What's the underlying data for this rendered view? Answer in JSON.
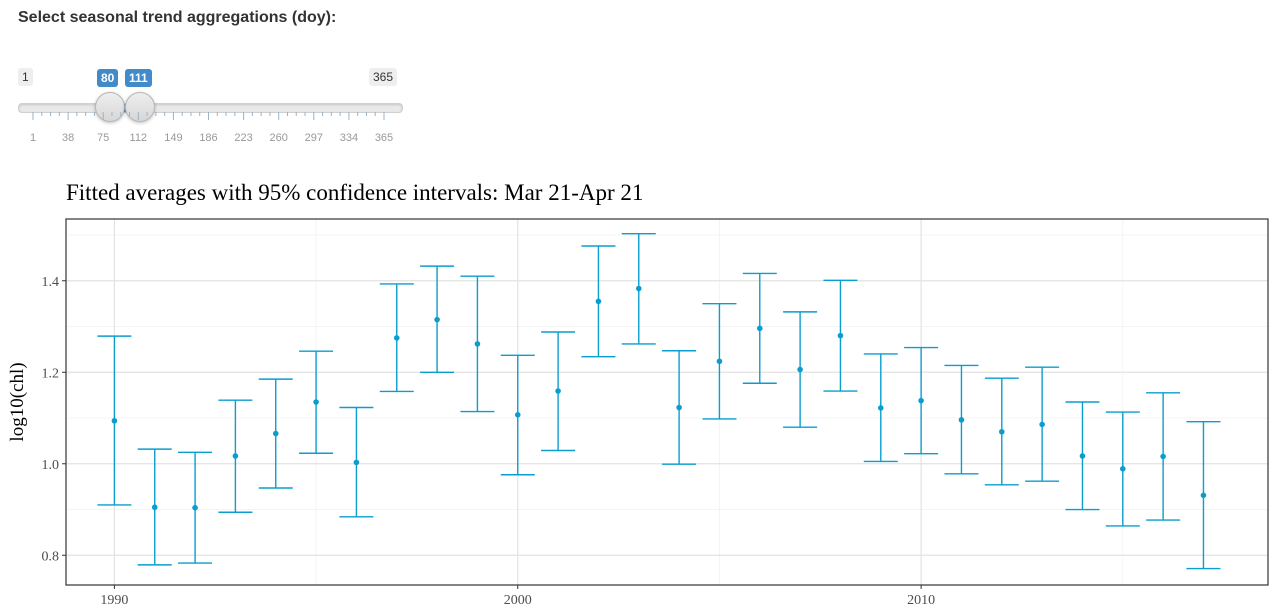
{
  "slider": {
    "label": "Select seasonal trend aggregations (doy):",
    "min": 1,
    "max": 365,
    "from": 80,
    "to": 111,
    "min_label": "1",
    "max_label": "365",
    "from_label": "80",
    "to_label": "111",
    "tick_labels": [
      "1",
      "38",
      "75",
      "112",
      "149",
      "186",
      "223",
      "260",
      "297",
      "334",
      "365"
    ],
    "colors": {
      "accent": "#428bca",
      "track": "#e9e9e9",
      "tick": "#99b3c9"
    }
  },
  "chart_data": {
    "type": "errorbar",
    "title": "Fitted averages with 95% confidence intervals: Mar 21-Apr 21",
    "xlabel": "",
    "ylabel": "log10(chl)",
    "xlim": [
      1988.8,
      2018.6
    ],
    "ylim": [
      0.735,
      1.535
    ],
    "xticks": [
      1990,
      2000,
      2010
    ],
    "yticks": [
      0.8,
      1.0,
      1.2,
      1.4
    ],
    "ytick_labels": [
      "0.8",
      "1.0",
      "1.2",
      "1.4"
    ],
    "grid": true,
    "color": "#0a9ecf",
    "series": [
      {
        "x": [
          1990,
          1991,
          1992,
          1993,
          1994,
          1995,
          1996,
          1997,
          1998,
          1999,
          2000,
          2001,
          2002,
          2003,
          2004,
          2005,
          2006,
          2007,
          2008,
          2009,
          2010,
          2011,
          2012,
          2013,
          2014,
          2015,
          2016,
          2017
        ],
        "y": [
          1.094,
          0.905,
          0.904,
          1.017,
          1.066,
          1.135,
          1.003,
          1.275,
          1.315,
          1.262,
          1.107,
          1.159,
          1.355,
          1.383,
          1.123,
          1.224,
          1.296,
          1.206,
          1.28,
          1.122,
          1.138,
          1.096,
          1.07,
          1.086,
          1.017,
          0.989,
          1.016,
          0.931
        ],
        "lower": [
          0.91,
          0.779,
          0.783,
          0.894,
          0.947,
          1.023,
          0.884,
          1.158,
          1.2,
          1.114,
          0.976,
          1.029,
          1.234,
          1.262,
          0.999,
          1.098,
          1.176,
          1.08,
          1.159,
          1.005,
          1.022,
          0.978,
          0.954,
          0.962,
          0.9,
          0.864,
          0.877,
          0.771
        ],
        "upper": [
          1.279,
          1.032,
          1.025,
          1.139,
          1.185,
          1.246,
          1.123,
          1.393,
          1.432,
          1.41,
          1.237,
          1.288,
          1.476,
          1.503,
          1.247,
          1.35,
          1.416,
          1.332,
          1.401,
          1.24,
          1.254,
          1.215,
          1.187,
          1.211,
          1.135,
          1.113,
          1.155,
          1.092
        ]
      }
    ]
  }
}
